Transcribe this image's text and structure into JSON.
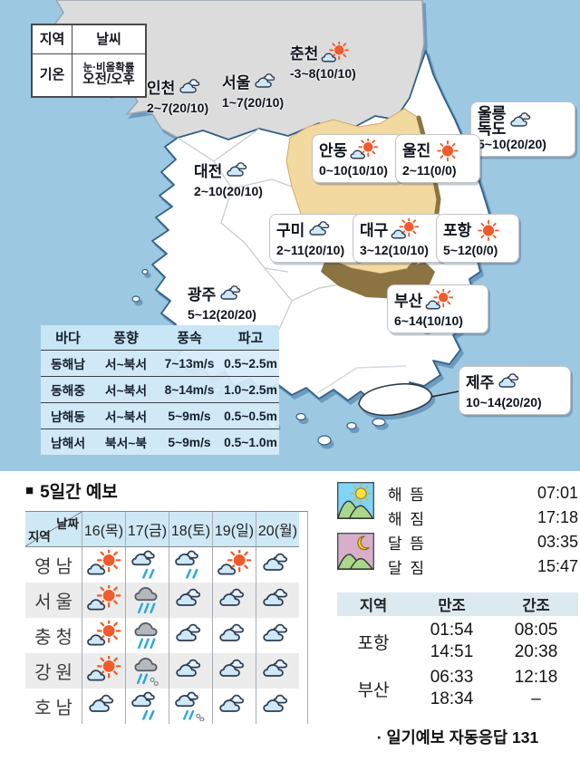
{
  "legend": {
    "region": "지역",
    "weather": "날씨",
    "temp": "기온",
    "prob_line1": "눈·비올확률",
    "prob_line2": "오전/오후"
  },
  "map": {
    "cities": [
      {
        "name": "인천",
        "temp": "2~7(20/10)",
        "icon": "cloud"
      },
      {
        "name": "서울",
        "temp": "1~7(20/10)",
        "icon": "cloud"
      },
      {
        "name": "춘천",
        "temp": "-3~8(10/10)",
        "icon": "sun-cloud"
      },
      {
        "name": "울릉\n독도",
        "temp": "5~10(20/20)",
        "icon": "cloud"
      },
      {
        "name": "안동",
        "temp": "0~10(10/10)",
        "icon": "sun-cloud"
      },
      {
        "name": "울진",
        "temp": "2~11(0/0)",
        "icon": "sun"
      },
      {
        "name": "대전",
        "temp": "2~10(20/10)",
        "icon": "cloud"
      },
      {
        "name": "구미",
        "temp": "2~11(20/10)",
        "icon": "cloud"
      },
      {
        "name": "대구",
        "temp": "3~12(10/10)",
        "icon": "sun-cloud"
      },
      {
        "name": "포항",
        "temp": "5~12(0/0)",
        "icon": "sun"
      },
      {
        "name": "광주",
        "temp": "5~12(20/20)",
        "icon": "cloud"
      },
      {
        "name": "부산",
        "temp": "6~14(10/10)",
        "icon": "sun-cloud"
      },
      {
        "name": "제주",
        "temp": "10~14(20/20)",
        "icon": "cloud"
      }
    ]
  },
  "sea_table": {
    "headers": [
      "바다",
      "풍향",
      "풍속",
      "파고"
    ],
    "rows": [
      [
        "동해남",
        "서~북서",
        "7~13m/s",
        "0.5~2.5m"
      ],
      [
        "동해중",
        "서~북서",
        "8~14m/s",
        "1.0~2.5m"
      ],
      [
        "남해동",
        "서~북서",
        "5~9m/s",
        "0.5~0.5m"
      ],
      [
        "남해서",
        "북서~북",
        "5~9m/s",
        "0.5~1.0m"
      ]
    ]
  },
  "forecast": {
    "title_marker": "■",
    "title": "5일간 예보",
    "corner_top": "날짜",
    "corner_bottom": "지역",
    "days": [
      "16(목)",
      "17(금)",
      "18(토)",
      "19(일)",
      "20(월)"
    ],
    "rows": [
      {
        "region": "영남",
        "icons": [
          "sun-cloud",
          "rain",
          "rain",
          "sun-cloud",
          "cloud"
        ]
      },
      {
        "region": "서울",
        "icons": [
          "sun-cloud",
          "gray-rain",
          "cloud",
          "cloud",
          "cloud"
        ]
      },
      {
        "region": "충청",
        "icons": [
          "sun-cloud",
          "gray-rain",
          "cloud",
          "cloud",
          "cloud"
        ]
      },
      {
        "region": "강원",
        "icons": [
          "sun-cloud",
          "gray-sleet",
          "cloud",
          "cloud",
          "cloud"
        ]
      },
      {
        "region": "호남",
        "icons": [
          "cloud",
          "rain",
          "sleet",
          "cloud",
          "cloud"
        ]
      }
    ]
  },
  "sun_moon": {
    "sun_icon": "sunrise-scene",
    "moon_icon": "moonrise-scene",
    "entries": [
      {
        "label": "해 뜸",
        "time": "07:01"
      },
      {
        "label": "해 짐",
        "time": "17:18"
      },
      {
        "label": "달 뜸",
        "time": "03:35"
      },
      {
        "label": "달 짐",
        "time": "15:47"
      }
    ]
  },
  "tide": {
    "headers": [
      "지역",
      "만조",
      "간조"
    ],
    "rows": [
      {
        "region": "포항",
        "manjo": [
          "01:54",
          "14:51"
        ],
        "ganjo": [
          "08:05",
          "20:38"
        ]
      },
      {
        "region": "부산",
        "manjo": [
          "06:33",
          "18:34"
        ],
        "ganjo": [
          "12:18",
          "–"
        ]
      }
    ]
  },
  "footer": {
    "note": "· 일기예보 자동응답 131"
  },
  "colors": {
    "sea": "#9dc8e2",
    "land": "#ffffff",
    "north_land": "#dcdcdc",
    "highlight_tan": "#f2d9a0",
    "highlight_brown": "#8b7442",
    "sun_orange": "#f15b2b",
    "cloud_fill": "#cfe8f7",
    "rain_blue": "#2fa8e0",
    "table_header_blue": "#cfe8f6",
    "row_alt_gray": "#ececec",
    "tide_header": "#dde9f1"
  }
}
